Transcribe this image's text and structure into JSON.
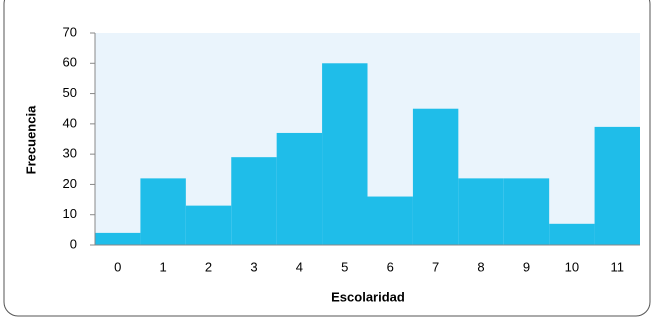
{
  "chart_data": {
    "type": "bar",
    "x_label": "Escolaridad",
    "y_label": "Frecuencia",
    "categories": [
      "0",
      "1",
      "2",
      "3",
      "4",
      "5",
      "6",
      "7",
      "8",
      "9",
      "10",
      "11"
    ],
    "values": [
      4,
      22,
      13,
      29,
      37,
      60,
      16,
      45,
      22,
      22,
      7,
      39
    ],
    "color": "#1fbde9",
    "plot_background": "#eaf4fc",
    "ylim": [
      0,
      70
    ],
    "yticks": [
      0,
      10,
      20,
      30,
      40,
      50,
      60,
      70
    ],
    "grid": false
  }
}
